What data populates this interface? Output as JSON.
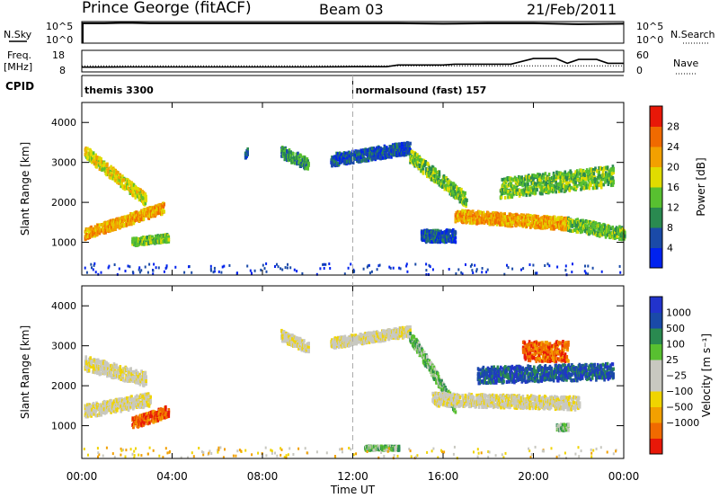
{
  "header": {
    "station": "Prince George (fitACF)",
    "beam": "Beam 03",
    "date": "21/Feb/2011"
  },
  "summary": {
    "left_labels": {
      "nsky": "N.Sky",
      "freq": "Freq.",
      "freq_unit": "[MHz]",
      "cpid": "CPID"
    },
    "right_labels": {
      "nsearch": "N.Search",
      "nave": "Nave"
    },
    "nsky_ticks": [
      "10^5",
      "10^0"
    ],
    "nsearch_ticks": [
      "10^5",
      "10^0"
    ],
    "freq_ticks": [
      "18",
      "8"
    ],
    "nave_ticks": [
      "60",
      "0"
    ],
    "cpid_entries": [
      {
        "start_hour": 0.0,
        "label": "themis 3300"
      },
      {
        "start_hour": 12.0,
        "label": "normalsound (fast) 157"
      }
    ]
  },
  "colors": {
    "power": [
      "#0022ee",
      "#1a4aa8",
      "#2a8a50",
      "#58c030",
      "#e0dc00",
      "#f2a000",
      "#f06a00",
      "#e81808"
    ],
    "velocity": [
      "#e81808",
      "#f06a00",
      "#f2a000",
      "#f0d400",
      "#c8c8c0",
      "#c8c8c0",
      "#58c030",
      "#2a8a50",
      "#1a4aa8",
      "#2233cc"
    ]
  },
  "chart_data": [
    {
      "type": "line",
      "name": "sky-noise-and-search-noise",
      "x": [
        0,
        1,
        2,
        3,
        4,
        6,
        8,
        10,
        12,
        14,
        16,
        18,
        20,
        22,
        24
      ],
      "series": [
        {
          "name": "N.Sky",
          "values": [
            4.6,
            4.6,
            4.7,
            4.6,
            4.6,
            4.6,
            4.6,
            4.6,
            4.6,
            4.6,
            4.5,
            4.6,
            4.6,
            4.4,
            4.5
          ]
        }
      ]
    },
    {
      "type": "line",
      "name": "frequency-and-nave",
      "x": [
        0,
        0.5,
        2,
        4,
        6,
        8,
        10,
        12,
        13.5,
        14,
        16,
        16.5,
        19,
        20,
        21,
        21.5,
        22,
        22.8,
        23.3,
        24
      ],
      "series": [
        {
          "name": "Freq.",
          "values": [
            10.2,
            10.2,
            10.3,
            10.3,
            10.3,
            10.3,
            10.3,
            10.4,
            10.4,
            11.2,
            11.2,
            11.6,
            11.6,
            14.2,
            14.2,
            12.0,
            13.8,
            13.8,
            12.0,
            12.0
          ]
        },
        {
          "name": "Nave",
          "values": [
            17,
            17,
            17,
            17,
            17,
            17,
            17,
            17,
            17,
            17,
            17,
            17,
            17,
            17,
            17,
            17,
            17,
            17,
            17,
            17
          ]
        }
      ]
    },
    {
      "type": "heatmap",
      "name": "power",
      "title": "",
      "xlabel": "Time UT",
      "ylabel": "Slant Range [km]",
      "colorbar_label": "Power [dB]",
      "colorbar_ticks": [
        "4",
        "8",
        "12",
        "16",
        "20",
        "24",
        "28"
      ],
      "xlim": [
        0,
        24
      ],
      "ylim": [
        180,
        4500
      ],
      "xticks": [
        "00:00",
        "04:00",
        "08:00",
        "12:00",
        "16:00",
        "20:00",
        "00:00"
      ],
      "yticks": [
        1000,
        2000,
        3000,
        4000
      ],
      "regions": [
        {
          "t": [
            0.1,
            2.8
          ],
          "r": [
            3300,
            2100
          ],
          "w": 300,
          "level": 4
        },
        {
          "t": [
            0.1,
            3.6
          ],
          "r": [
            1250,
            1900
          ],
          "w": 260,
          "level": 5
        },
        {
          "t": [
            2.2,
            3.8
          ],
          "r": [
            1050,
            1150
          ],
          "w": 180,
          "level": 3
        },
        {
          "t": [
            7.2,
            7.3
          ],
          "r": [
            3200,
            3300
          ],
          "w": 150,
          "level": 1
        },
        {
          "t": [
            8.8,
            10.0
          ],
          "r": [
            3300,
            3000
          ],
          "w": 300,
          "level": 2
        },
        {
          "t": [
            11.0,
            14.5
          ],
          "r": [
            3100,
            3400
          ],
          "w": 300,
          "level": 1
        },
        {
          "t": [
            14.5,
            17.0
          ],
          "r": [
            3200,
            2100
          ],
          "w": 350,
          "level": 3
        },
        {
          "t": [
            16.5,
            21.5
          ],
          "r": [
            1700,
            1500
          ],
          "w": 300,
          "level": 5
        },
        {
          "t": [
            21.5,
            24.0
          ],
          "r": [
            1500,
            1250
          ],
          "w": 320,
          "level": 3
        },
        {
          "t": [
            18.5,
            23.5
          ],
          "r": [
            2400,
            2700
          ],
          "w": 500,
          "level": 3
        },
        {
          "t": [
            15.0,
            16.5
          ],
          "r": [
            1200,
            1200
          ],
          "w": 300,
          "level": 1
        }
      ]
    },
    {
      "type": "heatmap",
      "name": "velocity",
      "title": "",
      "xlabel": "Time UT",
      "ylabel": "Slant Range [km]",
      "colorbar_label": "Velocity [m s⁻¹]",
      "colorbar_ticks": [
        "1000",
        "500",
        "100",
        "25",
        "−25",
        "−100",
        "−500",
        "−1000"
      ],
      "xlim": [
        0,
        24
      ],
      "ylim": [
        180,
        4500
      ],
      "xticks": [
        "00:00",
        "04:00",
        "08:00",
        "12:00",
        "16:00",
        "20:00",
        "00:00"
      ],
      "yticks": [
        1000,
        2000,
        3000,
        4000
      ],
      "regions": [
        {
          "t": [
            0.1,
            2.8
          ],
          "r": [
            2600,
            2200
          ],
          "w": 350,
          "level": 4
        },
        {
          "t": [
            0.1,
            3.0
          ],
          "r": [
            1400,
            1700
          ],
          "w": 320,
          "level": 4
        },
        {
          "t": [
            2.2,
            3.8
          ],
          "r": [
            1100,
            1400
          ],
          "w": 280,
          "level": 1
        },
        {
          "t": [
            8.8,
            10.0
          ],
          "r": [
            3300,
            3000
          ],
          "w": 280,
          "level": 4
        },
        {
          "t": [
            11.0,
            14.5
          ],
          "r": [
            3100,
            3400
          ],
          "w": 250,
          "level": 4
        },
        {
          "t": [
            14.5,
            16.5
          ],
          "r": [
            3300,
            1500
          ],
          "w": 300,
          "level": 6
        },
        {
          "t": [
            15.5,
            22.0
          ],
          "r": [
            1700,
            1600
          ],
          "w": 320,
          "level": 4
        },
        {
          "t": [
            19.5,
            21.5
          ],
          "r": [
            2900,
            2900
          ],
          "w": 500,
          "level": 1
        },
        {
          "t": [
            17.5,
            23.5
          ],
          "r": [
            2300,
            2400
          ],
          "w": 400,
          "level": 8
        },
        {
          "t": [
            12.5,
            14.0
          ],
          "r": [
            480,
            480
          ],
          "w": 100,
          "level": 6
        },
        {
          "t": [
            21.0,
            21.5
          ],
          "r": [
            1000,
            1000
          ],
          "w": 160,
          "level": 6
        }
      ]
    }
  ]
}
